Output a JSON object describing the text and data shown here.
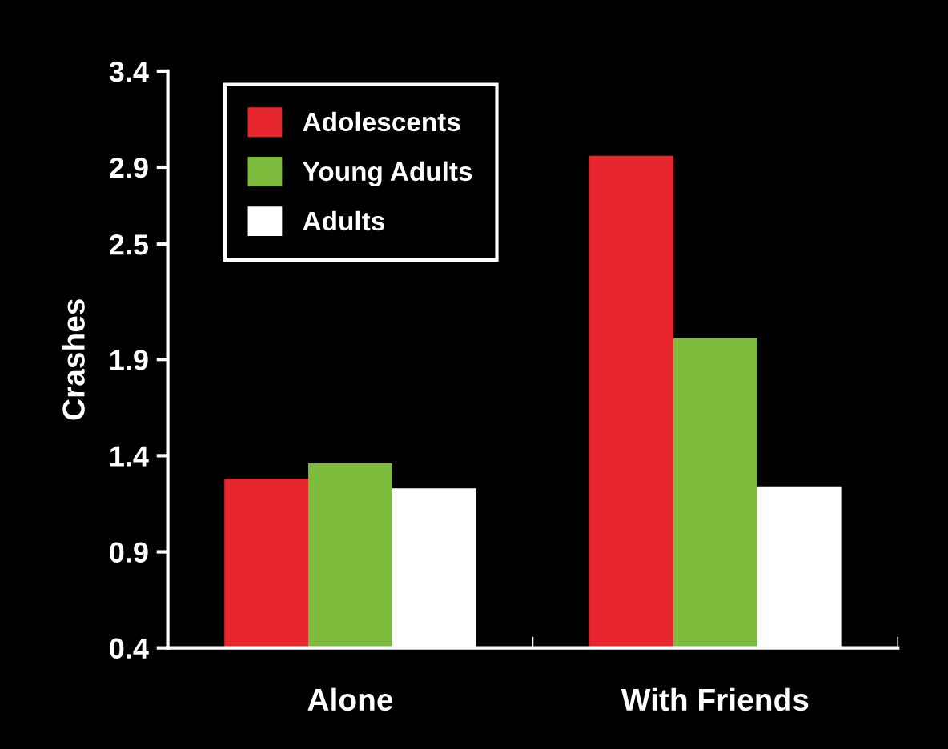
{
  "chart_data": {
    "type": "bar",
    "ylabel": "Crashes",
    "categories": [
      "Alone",
      "With Friends"
    ],
    "series": [
      {
        "name": "Adolescents",
        "color": "#e8262e",
        "values": [
          1.28,
          2.96
        ]
      },
      {
        "name": "Young Adults",
        "color": "#7dbb3c",
        "values": [
          1.36,
          2.01
        ]
      },
      {
        "name": "Adults",
        "color": "#ffffff",
        "values": [
          1.23,
          1.24
        ]
      }
    ],
    "ylim": [
      0.4,
      3.4
    ],
    "yticks": [
      0.4,
      0.9,
      1.4,
      1.9,
      2.5,
      2.9,
      3.4
    ],
    "grid": false,
    "legend": "top left"
  }
}
